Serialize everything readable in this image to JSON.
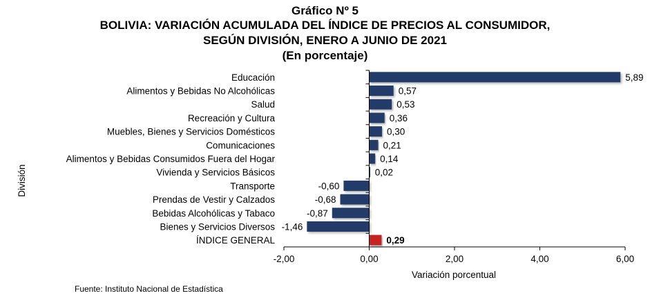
{
  "chart_data": {
    "type": "bar",
    "orientation": "horizontal",
    "title": "Gráfico Nº 5",
    "subtitle_lines": [
      "BOLIVIA: VARIACIÓN ACUMULADA DEL ÍNDICE DE PRECIOS AL CONSUMIDOR,",
      "SEGÚN DIVISIÓN, ENERO A JUNIO DE 2021",
      "(En porcentaje)"
    ],
    "xlabel": "Variación porcentual",
    "ylabel": "División",
    "xlim": [
      -2,
      6
    ],
    "xticks": [
      -2,
      0,
      2,
      4,
      6
    ],
    "xtick_labels": [
      "-2,00",
      "0,00",
      "2,00",
      "4,00",
      "6,00"
    ],
    "grid": false,
    "legend": "none",
    "categories": [
      "Educación",
      "Alimentos y Bebidas No Alcohólicas",
      "Salud",
      "Recreación y Cultura",
      "Muebles, Bienes y Servicios Domésticos",
      "Comunicaciones",
      "Alimentos y Bebidas Consumidos Fuera del Hogar",
      "Vivienda y Servicios Básicos",
      "Transporte",
      "Prendas de Vestir y Calzados",
      "Bebidas Alcohólicas y Tabaco",
      "Bienes y Servicios Diversos",
      "ÍNDICE GENERAL"
    ],
    "values": [
      5.89,
      0.57,
      0.53,
      0.36,
      0.3,
      0.21,
      0.14,
      0.02,
      -0.6,
      -0.68,
      -0.87,
      -1.46,
      0.29
    ],
    "value_labels": [
      "5,89",
      "0,57",
      "0,53",
      "0,36",
      "0,30",
      "0,21",
      "0,14",
      "0,02",
      "-0,60",
      "-0,68",
      "-0,87",
      "-1,46",
      "0,29"
    ],
    "highlight_index": 12,
    "colors": {
      "bar": "#243b69",
      "highlight": "#c62121"
    }
  },
  "source": "Fuente: Instituto Nacional de Estadística"
}
